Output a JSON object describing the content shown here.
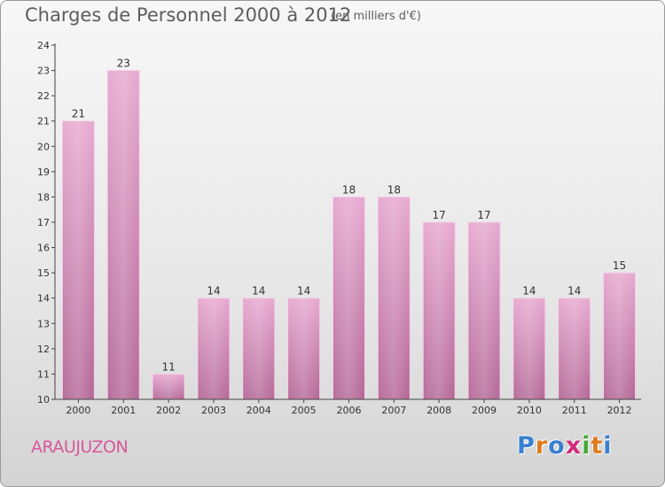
{
  "header": {
    "title": "Charges de Personnel 2000 à 2012",
    "subtitle": "(en milliers d'€)"
  },
  "footer": {
    "place": "ARAUJUZON",
    "logo": [
      "P",
      "r",
      "o",
      "x",
      "i",
      "t",
      "i"
    ],
    "logo_colors": [
      "#3a7fd0",
      "#e07a1a",
      "#3a7fd0",
      "#d02a7a",
      "#47a83a",
      "#e07a1a",
      "#3a7fd0"
    ]
  },
  "chart_data": {
    "type": "bar",
    "title": "Charges de Personnel 2000 à 2012",
    "subtitle": "(en milliers d'€)",
    "categories": [
      "2000",
      "2001",
      "2002",
      "2003",
      "2004",
      "2005",
      "2006",
      "2007",
      "2008",
      "2009",
      "2010",
      "2011",
      "2012"
    ],
    "values": [
      21,
      23,
      11,
      14,
      14,
      14,
      18,
      18,
      17,
      17,
      14,
      14,
      15
    ],
    "ylim": [
      10,
      24
    ],
    "yticks": [
      10,
      11,
      12,
      13,
      14,
      15,
      16,
      17,
      18,
      19,
      20,
      21,
      22,
      23,
      24
    ],
    "grid": false,
    "bar_color": "#d98ab9"
  }
}
